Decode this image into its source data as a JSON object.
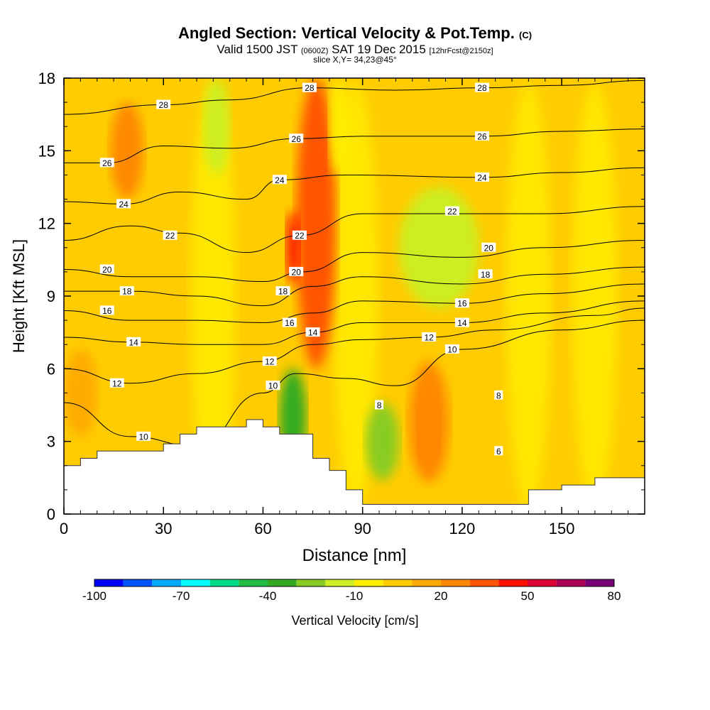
{
  "chart_data": {
    "type": "contour",
    "title": "Angled Section: Vertical Velocity & Pot.Temp.",
    "title_unit": "(C)",
    "subtitle_valid": "Valid 1500 JST",
    "subtitle_zone": "(0600Z)",
    "subtitle_date": "SAT 19 Dec 2015",
    "subtitle_fcst": "[12hrFcst@2150z]",
    "slice_info": "slice X,Y= 34,23@45°",
    "xlabel": "Distance [nm]",
    "ylabel": "Height [Kft MSL]",
    "xlim": [
      0,
      175
    ],
    "ylim": [
      0,
      18
    ],
    "x_ticks": [
      "0",
      "30",
      "60",
      "90",
      "120",
      "150"
    ],
    "y_ticks": [
      "0",
      "3",
      "6",
      "9",
      "12",
      "15",
      "18"
    ],
    "colorbar": {
      "title": "Vertical Velocity [cm/s]",
      "tick_labels": [
        "-100",
        "-70",
        "-40",
        "-10",
        "20",
        "50",
        "80"
      ],
      "colors": [
        "#0000ff",
        "#0055ff",
        "#00aaff",
        "#00ffff",
        "#00dd88",
        "#22bb44",
        "#33aa22",
        "#88cc22",
        "#ccee22",
        "#ffee00",
        "#ffcc00",
        "#ffaa00",
        "#ff8800",
        "#ff5500",
        "#ff1100",
        "#dd0033",
        "#aa0055",
        "#770077"
      ]
    },
    "terrain_profile": [
      [
        0,
        2
      ],
      [
        5,
        2.3
      ],
      [
        10,
        2.6
      ],
      [
        30,
        2.9
      ],
      [
        35,
        3.3
      ],
      [
        40,
        3.6
      ],
      [
        50,
        3.6
      ],
      [
        55,
        3.9
      ],
      [
        60,
        3.6
      ],
      [
        65,
        3.3
      ],
      [
        70,
        3.3
      ],
      [
        75,
        2.3
      ],
      [
        80,
        1.8
      ],
      [
        85,
        1.0
      ],
      [
        90,
        0.4
      ],
      [
        125,
        0.4
      ],
      [
        140,
        1.0
      ],
      [
        150,
        1.2
      ],
      [
        160,
        1.5
      ],
      [
        175,
        1.6
      ]
    ],
    "isotherm_labels": [
      {
        "label": "28",
        "x": 30,
        "y": 16.9
      },
      {
        "label": "26",
        "x": 13,
        "y": 14.5
      },
      {
        "label": "24",
        "x": 18,
        "y": 12.8
      },
      {
        "label": "22",
        "x": 32,
        "y": 11.5
      },
      {
        "label": "20",
        "x": 13,
        "y": 10.1
      },
      {
        "label": "18",
        "x": 19,
        "y": 9.2
      },
      {
        "label": "16",
        "x": 13,
        "y": 8.4
      },
      {
        "label": "14",
        "x": 21,
        "y": 7.1
      },
      {
        "label": "12",
        "x": 16,
        "y": 5.4
      },
      {
        "label": "10",
        "x": 24,
        "y": 3.2
      },
      {
        "label": "28",
        "x": 74,
        "y": 17.6
      },
      {
        "label": "26",
        "x": 70,
        "y": 15.5
      },
      {
        "label": "24",
        "x": 65,
        "y": 13.8
      },
      {
        "label": "22",
        "x": 71,
        "y": 11.5
      },
      {
        "label": "20",
        "x": 70,
        "y": 10.0
      },
      {
        "label": "18",
        "x": 66,
        "y": 9.2
      },
      {
        "label": "16",
        "x": 68,
        "y": 7.9
      },
      {
        "label": "14",
        "x": 75,
        "y": 7.5
      },
      {
        "label": "12",
        "x": 62,
        "y": 6.3
      },
      {
        "label": "10",
        "x": 63,
        "y": 5.3
      },
      {
        "label": "8",
        "x": 95,
        "y": 4.5
      },
      {
        "label": "28",
        "x": 126,
        "y": 17.6
      },
      {
        "label": "26",
        "x": 126,
        "y": 15.6
      },
      {
        "label": "24",
        "x": 126,
        "y": 13.9
      },
      {
        "label": "22",
        "x": 117,
        "y": 12.5
      },
      {
        "label": "20",
        "x": 128,
        "y": 11.0
      },
      {
        "label": "18",
        "x": 127,
        "y": 9.9
      },
      {
        "label": "16",
        "x": 120,
        "y": 8.7
      },
      {
        "label": "14",
        "x": 120,
        "y": 7.9
      },
      {
        "label": "12",
        "x": 110,
        "y": 7.3
      },
      {
        "label": "10",
        "x": 117,
        "y": 6.8
      },
      {
        "label": "8",
        "x": 131,
        "y": 4.9
      },
      {
        "label": "6",
        "x": 131,
        "y": 2.6
      }
    ],
    "isotherm_heights": [
      {
        "level": 10,
        "points": [
          [
            0,
            4.6
          ],
          [
            20,
            3.2
          ],
          [
            40,
            2.8
          ],
          [
            60,
            5.0
          ],
          [
            70,
            5.8
          ],
          [
            85,
            5.6
          ],
          [
            100,
            5.3
          ],
          [
            120,
            6.8
          ],
          [
            150,
            7.6
          ],
          [
            175,
            8.0
          ]
        ]
      },
      {
        "level": 12,
        "points": [
          [
            0,
            6.0
          ],
          [
            20,
            5.4
          ],
          [
            40,
            5.8
          ],
          [
            60,
            6.3
          ],
          [
            75,
            7.0
          ],
          [
            90,
            7.2
          ],
          [
            110,
            7.3
          ],
          [
            130,
            7.6
          ],
          [
            160,
            8.2
          ],
          [
            175,
            8.5
          ]
        ]
      },
      {
        "level": 14,
        "points": [
          [
            0,
            7.3
          ],
          [
            20,
            7.1
          ],
          [
            40,
            7.0
          ],
          [
            60,
            7.0
          ],
          [
            75,
            7.5
          ],
          [
            90,
            7.9
          ],
          [
            120,
            7.9
          ],
          [
            145,
            8.3
          ],
          [
            175,
            8.8
          ]
        ]
      },
      {
        "level": 16,
        "points": [
          [
            0,
            8.4
          ],
          [
            20,
            8.0
          ],
          [
            40,
            8.0
          ],
          [
            60,
            7.9
          ],
          [
            75,
            8.3
          ],
          [
            90,
            8.8
          ],
          [
            120,
            8.7
          ],
          [
            145,
            9.1
          ],
          [
            175,
            9.5
          ]
        ]
      },
      {
        "level": 18,
        "points": [
          [
            0,
            9.2
          ],
          [
            20,
            9.2
          ],
          [
            40,
            9.0
          ],
          [
            60,
            8.6
          ],
          [
            75,
            9.4
          ],
          [
            90,
            9.8
          ],
          [
            120,
            9.5
          ],
          [
            145,
            9.9
          ],
          [
            175,
            10.2
          ]
        ]
      },
      {
        "level": 20,
        "points": [
          [
            0,
            10.1
          ],
          [
            20,
            9.8
          ],
          [
            40,
            9.8
          ],
          [
            60,
            9.6
          ],
          [
            72,
            10.0
          ],
          [
            90,
            10.8
          ],
          [
            120,
            10.6
          ],
          [
            145,
            11.0
          ],
          [
            175,
            11.3
          ]
        ]
      },
      {
        "level": 22,
        "points": [
          [
            0,
            11.3
          ],
          [
            20,
            11.9
          ],
          [
            35,
            11.6
          ],
          [
            55,
            10.8
          ],
          [
            71,
            11.5
          ],
          [
            90,
            12.4
          ],
          [
            120,
            12.4
          ],
          [
            145,
            12.4
          ],
          [
            175,
            12.7
          ]
        ]
      },
      {
        "level": 24,
        "points": [
          [
            0,
            12.9
          ],
          [
            18,
            12.8
          ],
          [
            35,
            13.3
          ],
          [
            55,
            13.0
          ],
          [
            65,
            13.8
          ],
          [
            85,
            14.0
          ],
          [
            126,
            13.9
          ],
          [
            150,
            14.1
          ],
          [
            175,
            14.3
          ]
        ]
      },
      {
        "level": 26,
        "points": [
          [
            0,
            14.5
          ],
          [
            13,
            14.5
          ],
          [
            30,
            15.2
          ],
          [
            50,
            15.1
          ],
          [
            70,
            15.5
          ],
          [
            90,
            15.6
          ],
          [
            126,
            15.6
          ],
          [
            150,
            15.8
          ],
          [
            175,
            15.9
          ]
        ]
      },
      {
        "level": 28,
        "points": [
          [
            0,
            16.5
          ],
          [
            30,
            16.9
          ],
          [
            50,
            17.1
          ],
          [
            74,
            17.6
          ],
          [
            100,
            17.5
          ],
          [
            126,
            17.6
          ],
          [
            150,
            17.7
          ],
          [
            175,
            17.9
          ]
        ]
      }
    ],
    "velocity_blobs": [
      {
        "x": 76,
        "y": 12,
        "rx": 6,
        "ry": 6,
        "color": "#ff5500"
      },
      {
        "x": 69,
        "y": 11,
        "rx": 2,
        "ry": 1.5,
        "color": "#ff1100"
      },
      {
        "x": 110,
        "y": 3.5,
        "rx": 3,
        "ry": 1.3,
        "color": "#ff1100"
      },
      {
        "x": 110,
        "y": 3.8,
        "rx": 6,
        "ry": 2.5,
        "color": "#ff8800"
      },
      {
        "x": 19,
        "y": 15,
        "rx": 5,
        "ry": 2,
        "color": "#ff8800"
      },
      {
        "x": 5,
        "y": 5,
        "rx": 5,
        "ry": 1.8,
        "color": "#ffaa00"
      },
      {
        "x": 96,
        "y": 3,
        "rx": 5,
        "ry": 1.6,
        "color": "#88cc22"
      },
      {
        "x": 69,
        "y": 4,
        "rx": 4,
        "ry": 2,
        "color": "#33aa22"
      },
      {
        "x": 113,
        "y": 11,
        "rx": 12,
        "ry": 2.5,
        "color": "#ccee22"
      },
      {
        "x": 46,
        "y": 16,
        "rx": 4,
        "ry": 2,
        "color": "#ccee22"
      },
      {
        "x": 83,
        "y": 16,
        "rx": 3,
        "ry": 2,
        "color": "#ffee00"
      }
    ]
  }
}
